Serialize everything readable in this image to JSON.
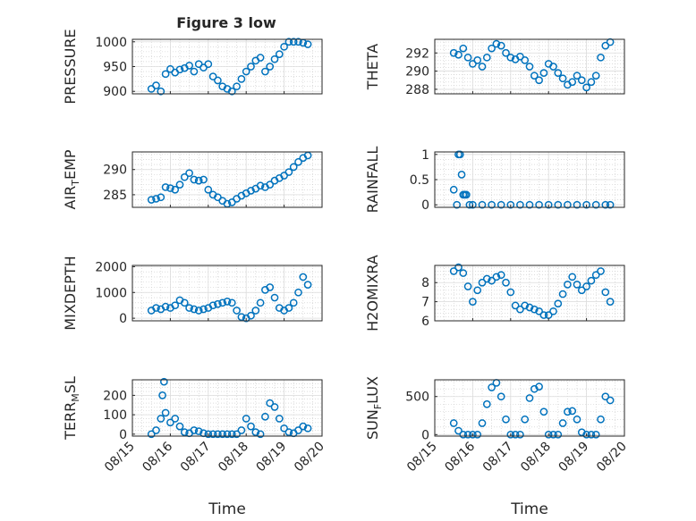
{
  "figure_title": "Figure 3 low",
  "chart_data": [
    {
      "type": "scatter",
      "ylabel": "PRESSURE",
      "xlim": [
        "08/15",
        "08/20"
      ],
      "ylim": [
        895,
        1005
      ],
      "yticks": [
        900,
        950,
        1000
      ],
      "xticks": [
        "08/15",
        "08/16",
        "08/17",
        "08/18",
        "08/19",
        "08/20"
      ],
      "grid": true,
      "x": [
        "08/15 12:00",
        "08/15 15:00",
        "08/15 18:00",
        "08/15 21:00",
        "08/16 00:00",
        "08/16 03:00",
        "08/16 06:00",
        "08/16 09:00",
        "08/16 12:00",
        "08/16 15:00",
        "08/16 18:00",
        "08/16 21:00",
        "08/17 00:00",
        "08/17 03:00",
        "08/17 06:00",
        "08/17 09:00",
        "08/17 12:00",
        "08/17 15:00",
        "08/17 18:00",
        "08/17 21:00",
        "08/18 00:00",
        "08/18 03:00",
        "08/18 06:00",
        "08/18 09:00",
        "08/18 12:00",
        "08/18 15:00",
        "08/18 18:00",
        "08/18 21:00",
        "08/19 00:00",
        "08/19 03:00",
        "08/19 06:00",
        "08/19 09:00",
        "08/19 12:00",
        "08/19 15:00"
      ],
      "values": [
        905,
        912,
        900,
        935,
        945,
        938,
        944,
        947,
        952,
        940,
        955,
        948,
        955,
        930,
        922,
        910,
        905,
        900,
        910,
        925,
        940,
        950,
        962,
        968,
        940,
        950,
        965,
        975,
        990,
        1000,
        1000,
        1000,
        998,
        995
      ]
    },
    {
      "type": "scatter",
      "ylabel": "THETA",
      "xlim": [
        "08/15",
        "08/20"
      ],
      "ylim": [
        287.5,
        293.5
      ],
      "yticks": [
        288,
        290,
        292
      ],
      "xticks": [
        "08/15",
        "08/16",
        "08/17",
        "08/18",
        "08/19",
        "08/20"
      ],
      "grid": true,
      "x": [
        "08/15 12:00",
        "08/15 15:00",
        "08/15 18:00",
        "08/15 21:00",
        "08/16 00:00",
        "08/16 03:00",
        "08/16 06:00",
        "08/16 09:00",
        "08/16 12:00",
        "08/16 15:00",
        "08/16 18:00",
        "08/16 21:00",
        "08/17 00:00",
        "08/17 03:00",
        "08/17 06:00",
        "08/17 09:00",
        "08/17 12:00",
        "08/17 15:00",
        "08/17 18:00",
        "08/17 21:00",
        "08/18 00:00",
        "08/18 03:00",
        "08/18 06:00",
        "08/18 09:00",
        "08/18 12:00",
        "08/18 15:00",
        "08/18 18:00",
        "08/18 21:00",
        "08/19 00:00",
        "08/19 03:00",
        "08/19 06:00",
        "08/19 09:00",
        "08/19 12:00",
        "08/19 15:00"
      ],
      "values": [
        292,
        291.8,
        292.5,
        291.5,
        290.8,
        291.2,
        290.5,
        291.5,
        292.5,
        293,
        292.8,
        292,
        291.5,
        291.3,
        291.6,
        291.2,
        290.5,
        289.5,
        289,
        289.8,
        290.8,
        290.5,
        289.8,
        289.2,
        288.5,
        288.8,
        289.5,
        289,
        288.2,
        288.8,
        289.5,
        291.5,
        292.8,
        293.2
      ]
    },
    {
      "type": "scatter",
      "ylabel": "AIR_TEMP",
      "xlim": [
        "08/15",
        "08/20"
      ],
      "ylim": [
        282.5,
        293.5
      ],
      "yticks": [
        285,
        290
      ],
      "xticks": [
        "08/15",
        "08/16",
        "08/17",
        "08/18",
        "08/19",
        "08/20"
      ],
      "grid": true,
      "x": [
        "08/15 12:00",
        "08/15 15:00",
        "08/15 18:00",
        "08/15 21:00",
        "08/16 00:00",
        "08/16 03:00",
        "08/16 06:00",
        "08/16 09:00",
        "08/16 12:00",
        "08/16 15:00",
        "08/16 18:00",
        "08/16 21:00",
        "08/17 00:00",
        "08/17 03:00",
        "08/17 06:00",
        "08/17 09:00",
        "08/17 12:00",
        "08/17 15:00",
        "08/17 18:00",
        "08/17 21:00",
        "08/18 00:00",
        "08/18 03:00",
        "08/18 06:00",
        "08/18 09:00",
        "08/18 12:00",
        "08/18 15:00",
        "08/18 18:00",
        "08/18 21:00",
        "08/19 00:00",
        "08/19 03:00",
        "08/19 06:00",
        "08/19 09:00",
        "08/19 12:00",
        "08/19 15:00"
      ],
      "values": [
        284,
        284.2,
        284.5,
        286.5,
        286.3,
        286,
        287,
        288.5,
        289.3,
        288,
        287.8,
        288,
        286,
        285,
        284.5,
        283.8,
        283.2,
        283.5,
        284.2,
        284.8,
        285.3,
        285.8,
        286.2,
        286.8,
        286.5,
        287,
        287.8,
        288.3,
        288.8,
        289.5,
        290.5,
        291.5,
        292.3,
        292.8
      ]
    },
    {
      "type": "scatter",
      "ylabel": "RAINFALL",
      "xlim": [
        "08/15",
        "08/20"
      ],
      "ylim": [
        -0.05,
        1.05
      ],
      "yticks": [
        0,
        0.5,
        1
      ],
      "xticks": [
        "08/15",
        "08/16",
        "08/17",
        "08/18",
        "08/19",
        "08/20"
      ],
      "grid": true,
      "x": [
        "08/15 12:00",
        "08/15 14:00",
        "08/15 15:00",
        "08/15 16:00",
        "08/15 17:00",
        "08/15 18:00",
        "08/15 19:00",
        "08/15 20:00",
        "08/15 22:00",
        "08/16 00:00",
        "08/16 06:00",
        "08/16 12:00",
        "08/16 18:00",
        "08/17 00:00",
        "08/17 06:00",
        "08/17 12:00",
        "08/17 18:00",
        "08/18 00:00",
        "08/18 06:00",
        "08/18 12:00",
        "08/18 18:00",
        "08/19 00:00",
        "08/19 06:00",
        "08/19 12:00",
        "08/19 15:00"
      ],
      "values": [
        0.3,
        0,
        1,
        1,
        0.6,
        0.2,
        0.2,
        0.2,
        0,
        0,
        0,
        0,
        0,
        0,
        0,
        0,
        0,
        0,
        0,
        0,
        0,
        0,
        0,
        0,
        0
      ]
    },
    {
      "type": "scatter",
      "ylabel": "MIXDEPTH",
      "xlim": [
        "08/15",
        "08/20"
      ],
      "ylim": [
        -100,
        2050
      ],
      "yticks": [
        0,
        1000,
        2000
      ],
      "xticks": [
        "08/15",
        "08/16",
        "08/17",
        "08/18",
        "08/19",
        "08/20"
      ],
      "grid": true,
      "x": [
        "08/15 12:00",
        "08/15 15:00",
        "08/15 18:00",
        "08/15 21:00",
        "08/16 00:00",
        "08/16 03:00",
        "08/16 06:00",
        "08/16 09:00",
        "08/16 12:00",
        "08/16 15:00",
        "08/16 18:00",
        "08/16 21:00",
        "08/17 00:00",
        "08/17 03:00",
        "08/17 06:00",
        "08/17 09:00",
        "08/17 12:00",
        "08/17 15:00",
        "08/17 18:00",
        "08/17 21:00",
        "08/18 00:00",
        "08/18 03:00",
        "08/18 06:00",
        "08/18 09:00",
        "08/18 12:00",
        "08/18 15:00",
        "08/18 18:00",
        "08/18 21:00",
        "08/19 00:00",
        "08/19 03:00",
        "08/19 06:00",
        "08/19 09:00",
        "08/19 12:00",
        "08/19 15:00"
      ],
      "values": [
        300,
        400,
        350,
        450,
        400,
        500,
        700,
        600,
        400,
        350,
        300,
        350,
        400,
        500,
        550,
        600,
        650,
        600,
        300,
        50,
        0,
        100,
        300,
        600,
        1100,
        1200,
        800,
        400,
        300,
        400,
        600,
        1000,
        1600,
        1300
      ]
    },
    {
      "type": "scatter",
      "ylabel": "H2OMIXRA",
      "xlim": [
        "08/15",
        "08/20"
      ],
      "ylim": [
        6,
        8.9
      ],
      "yticks": [
        6,
        7,
        8
      ],
      "xticks": [
        "08/15",
        "08/16",
        "08/17",
        "08/18",
        "08/19",
        "08/20"
      ],
      "grid": true,
      "x": [
        "08/15 12:00",
        "08/15 15:00",
        "08/15 18:00",
        "08/15 21:00",
        "08/16 00:00",
        "08/16 03:00",
        "08/16 06:00",
        "08/16 09:00",
        "08/16 12:00",
        "08/16 15:00",
        "08/16 18:00",
        "08/16 21:00",
        "08/17 00:00",
        "08/17 03:00",
        "08/17 06:00",
        "08/17 09:00",
        "08/17 12:00",
        "08/17 15:00",
        "08/17 18:00",
        "08/17 21:00",
        "08/18 00:00",
        "08/18 03:00",
        "08/18 06:00",
        "08/18 09:00",
        "08/18 12:00",
        "08/18 15:00",
        "08/18 18:00",
        "08/18 21:00",
        "08/19 00:00",
        "08/19 03:00",
        "08/19 06:00",
        "08/19 09:00",
        "08/19 12:00",
        "08/19 15:00"
      ],
      "values": [
        8.6,
        8.8,
        8.5,
        7.8,
        7,
        7.6,
        8,
        8.2,
        8.1,
        8.3,
        8.4,
        8,
        7.5,
        6.8,
        6.6,
        6.8,
        6.7,
        6.6,
        6.5,
        6.3,
        6.3,
        6.5,
        6.9,
        7.4,
        7.9,
        8.3,
        7.9,
        7.6,
        7.8,
        8.1,
        8.4,
        8.6,
        7.5,
        7
      ]
    },
    {
      "type": "scatter",
      "ylabel": "TERR_MSL",
      "xlim": [
        "08/15",
        "08/20"
      ],
      "ylim": [
        -10,
        280
      ],
      "yticks": [
        0,
        100,
        200
      ],
      "xticks": [
        "08/15",
        "08/16",
        "08/17",
        "08/18",
        "08/19",
        "08/20"
      ],
      "xlabel": "Time",
      "grid": true,
      "x": [
        "08/15 12:00",
        "08/15 15:00",
        "08/15 18:00",
        "08/15 19:00",
        "08/15 20:00",
        "08/15 21:00",
        "08/16 00:00",
        "08/16 03:00",
        "08/16 06:00",
        "08/16 09:00",
        "08/16 12:00",
        "08/16 15:00",
        "08/16 18:00",
        "08/16 21:00",
        "08/17 00:00",
        "08/17 03:00",
        "08/17 06:00",
        "08/17 09:00",
        "08/17 12:00",
        "08/17 15:00",
        "08/17 18:00",
        "08/17 21:00",
        "08/18 00:00",
        "08/18 03:00",
        "08/18 06:00",
        "08/18 09:00",
        "08/18 12:00",
        "08/18 15:00",
        "08/18 18:00",
        "08/18 21:00",
        "08/19 00:00",
        "08/19 03:00",
        "08/19 06:00",
        "08/19 09:00",
        "08/19 12:00",
        "08/19 15:00"
      ],
      "values": [
        0,
        20,
        80,
        200,
        270,
        110,
        60,
        80,
        40,
        10,
        5,
        20,
        15,
        5,
        0,
        0,
        0,
        0,
        0,
        0,
        0,
        20,
        80,
        40,
        10,
        0,
        90,
        160,
        140,
        80,
        30,
        10,
        5,
        20,
        40,
        30
      ]
    },
    {
      "type": "scatter",
      "ylabel": "SUN_FLUX",
      "xlim": [
        "08/15",
        "08/20"
      ],
      "ylim": [
        -20,
        720
      ],
      "yticks": [
        0,
        500
      ],
      "xticks": [
        "08/15",
        "08/16",
        "08/17",
        "08/18",
        "08/19",
        "08/20"
      ],
      "xlabel": "Time",
      "grid": true,
      "x": [
        "08/15 12:00",
        "08/15 15:00",
        "08/15 18:00",
        "08/15 21:00",
        "08/16 00:00",
        "08/16 03:00",
        "08/16 06:00",
        "08/16 09:00",
        "08/16 12:00",
        "08/16 15:00",
        "08/16 18:00",
        "08/16 21:00",
        "08/17 00:00",
        "08/17 03:00",
        "08/17 06:00",
        "08/17 09:00",
        "08/17 12:00",
        "08/17 15:00",
        "08/17 18:00",
        "08/17 21:00",
        "08/18 00:00",
        "08/18 03:00",
        "08/18 06:00",
        "08/18 09:00",
        "08/18 12:00",
        "08/18 15:00",
        "08/18 18:00",
        "08/18 21:00",
        "08/19 00:00",
        "08/19 03:00",
        "08/19 06:00",
        "08/19 09:00",
        "08/19 12:00",
        "08/19 15:00"
      ],
      "values": [
        150,
        50,
        0,
        0,
        0,
        0,
        150,
        400,
        620,
        680,
        500,
        200,
        0,
        0,
        0,
        200,
        480,
        600,
        630,
        300,
        0,
        0,
        0,
        150,
        300,
        310,
        200,
        30,
        0,
        0,
        0,
        200,
        500,
        450
      ]
    }
  ]
}
